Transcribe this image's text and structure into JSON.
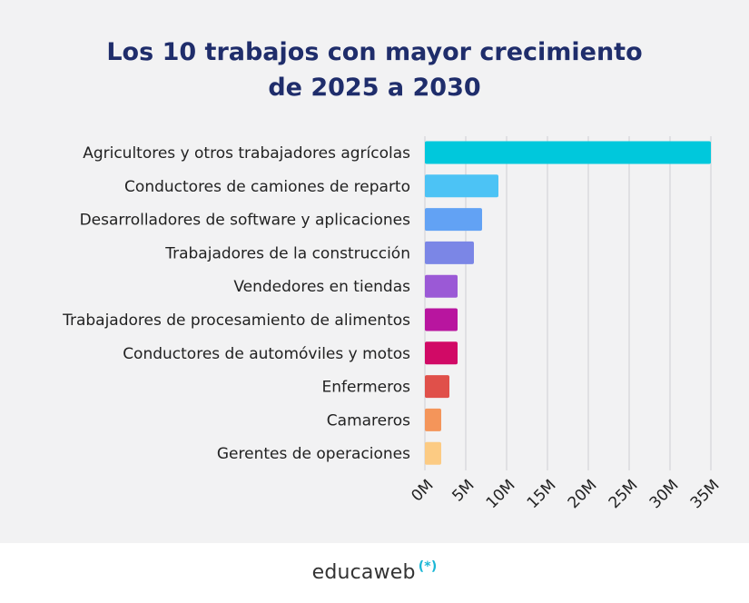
{
  "chart_data": {
    "type": "bar",
    "orientation": "horizontal",
    "title_lines": [
      "Los 10 trabajos con mayor crecimiento",
      "de 2025 a 2030"
    ],
    "categories": [
      "Agricultores y otros trabajadores agrícolas",
      "Conductores de camiones de reparto",
      "Desarrolladores de software y aplicaciones",
      "Trabajadores de la construcción",
      "Vendedores en tiendas",
      "Trabajadores de procesamiento de alimentos",
      "Conductores de automóviles y motos",
      "Enfermeros",
      "Camareros",
      "Gerentes de operaciones"
    ],
    "values": [
      35,
      9,
      7,
      6,
      4,
      4,
      4,
      3,
      2,
      2
    ],
    "colors": [
      "#00c8dc",
      "#4cc3f5",
      "#62a2f4",
      "#7b86e6",
      "#9b59d6",
      "#b8159f",
      "#d10a66",
      "#e0504a",
      "#f4955a",
      "#fccb83"
    ],
    "xlim": [
      0,
      35
    ],
    "x_ticks": [
      0,
      5,
      10,
      15,
      20,
      25,
      30,
      35
    ],
    "x_tick_labels": [
      "0M",
      "5M",
      "10M",
      "15M",
      "20M",
      "25M",
      "30M",
      "35M"
    ],
    "grid": true,
    "legend": "none"
  },
  "footer": {
    "brand": "educaweb",
    "brand_mark": "(*)",
    "brand_color": "#1bb7d6"
  }
}
